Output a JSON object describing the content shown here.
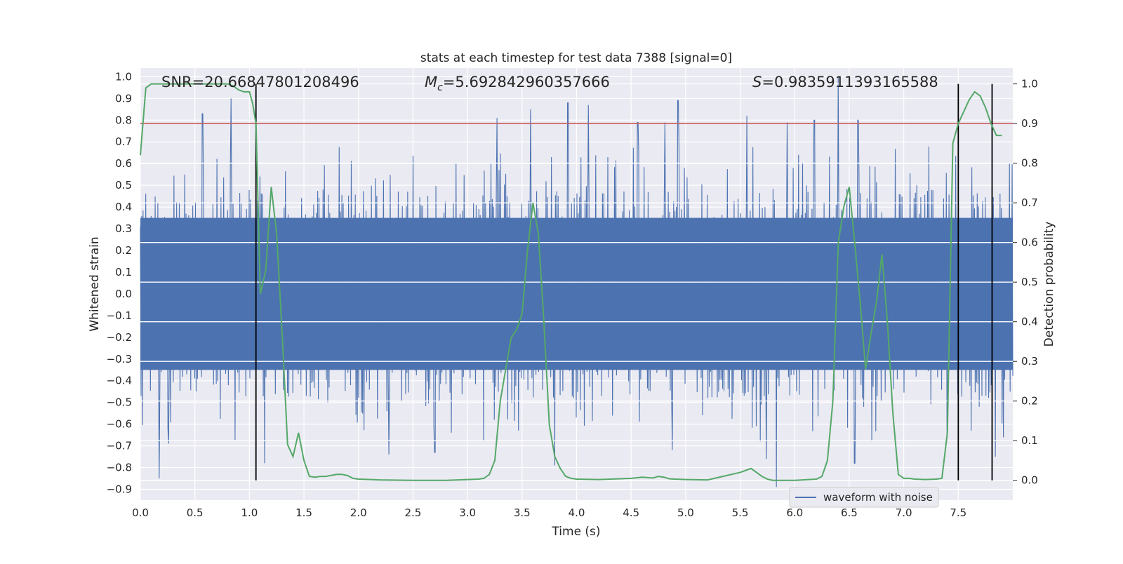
{
  "chart_data": {
    "type": "line",
    "title": "stats at each timestep for test data 7388 [signal=0]",
    "xlabel": "Time (s)",
    "ylabel": "Whitened strain",
    "ylabel_right": "Detection probability",
    "xlim": [
      0.0,
      8.0
    ],
    "ylim": [
      -0.95,
      1.04
    ],
    "ylim_right": [
      -0.05,
      1.04
    ],
    "x_ticks": [
      0.0,
      0.5,
      1.0,
      1.5,
      2.0,
      2.5,
      3.0,
      3.5,
      4.0,
      4.5,
      5.0,
      5.5,
      6.0,
      6.5,
      7.0,
      7.5
    ],
    "x_tick_labels": [
      "0.0",
      "0.5",
      "1.0",
      "1.5",
      "2.0",
      "2.5",
      "3.0",
      "3.5",
      "4.0",
      "4.5",
      "5.0",
      "5.5",
      "6.0",
      "6.5",
      "7.0",
      "7.5"
    ],
    "y_ticks": [
      1.0,
      0.9,
      0.8,
      0.7,
      0.6,
      0.5,
      0.4,
      0.3,
      0.2,
      0.1,
      0.0,
      -0.1,
      -0.2,
      -0.3,
      -0.4,
      -0.5,
      -0.6,
      -0.7,
      -0.8,
      -0.9
    ],
    "y_tick_labels": [
      "1.0",
      "0.9",
      "0.8",
      "0.7",
      "0.6",
      "0.5",
      "0.4",
      "0.3",
      "0.2",
      "0.1",
      "0.0",
      "−0.1",
      "−0.2",
      "−0.3",
      "−0.4",
      "−0.5",
      "−0.6",
      "−0.7",
      "−0.8",
      "−0.9"
    ],
    "y2_ticks": [
      1.0,
      0.9,
      0.8,
      0.7,
      0.6,
      0.5,
      0.4,
      0.3,
      0.2,
      0.1,
      0.0
    ],
    "y2_tick_labels": [
      "1.0",
      "0.9",
      "0.8",
      "0.7",
      "0.6",
      "0.5",
      "0.4",
      "0.3",
      "0.2",
      "0.1",
      "0.0"
    ],
    "grid": true,
    "legend": {
      "location": "lower-right",
      "entries": [
        "waveform with noise"
      ]
    },
    "annotations": {
      "snr": "SNR=20.66847801208496",
      "mc_symbol": "M",
      "mc_subscript": "c",
      "mc_value": "=5.692842960357666",
      "s_symbol": "S",
      "s_value": "=0.9835911393165588"
    },
    "threshold_right": 0.9,
    "vertical_lines_x": [
      1.06,
      7.5,
      7.81
    ],
    "waveform": {
      "name": "waveform with noise",
      "color": "#4c72b0",
      "x_range": [
        0.0,
        8.0
      ],
      "typical_upper": 0.35,
      "typical_lower": -0.35,
      "peaks_up": [
        [
          0.57,
          0.83
        ],
        [
          0.83,
          0.9
        ],
        [
          3.27,
          0.81
        ],
        [
          3.58,
          0.85
        ],
        [
          3.92,
          0.88
        ],
        [
          4.11,
          0.87
        ],
        [
          4.56,
          0.79
        ],
        [
          4.81,
          0.79
        ],
        [
          4.93,
          0.89
        ],
        [
          5.56,
          0.82
        ],
        [
          5.93,
          0.79
        ],
        [
          6.18,
          0.8
        ],
        [
          6.4,
          1.0
        ],
        [
          6.58,
          0.8
        ]
      ],
      "peaks_down": [
        [
          0.17,
          -0.85
        ],
        [
          0.26,
          -0.69
        ],
        [
          1.14,
          -0.78
        ],
        [
          2.28,
          -0.74
        ],
        [
          2.7,
          -0.73
        ],
        [
          3.8,
          -0.79
        ],
        [
          4.88,
          -0.72
        ],
        [
          5.74,
          -0.76
        ],
        [
          5.83,
          -0.89
        ],
        [
          6.55,
          -0.78
        ],
        [
          7.84,
          -0.75
        ]
      ]
    },
    "probability": {
      "color": "#55a868",
      "x": [
        0.0,
        0.05,
        0.1,
        0.15,
        0.2,
        0.3,
        0.4,
        0.5,
        0.6,
        0.7,
        0.8,
        0.85,
        0.9,
        0.95,
        1.0,
        1.03,
        1.06,
        1.1,
        1.15,
        1.2,
        1.25,
        1.3,
        1.35,
        1.4,
        1.45,
        1.5,
        1.55,
        1.6,
        1.65,
        1.7,
        1.8,
        1.85,
        1.9,
        1.95,
        2.0,
        2.2,
        2.5,
        2.8,
        3.0,
        3.1,
        3.15,
        3.2,
        3.25,
        3.3,
        3.35,
        3.4,
        3.45,
        3.5,
        3.55,
        3.6,
        3.65,
        3.7,
        3.75,
        3.8,
        3.85,
        3.9,
        3.95,
        4.0,
        4.2,
        4.4,
        4.5,
        4.6,
        4.7,
        4.75,
        4.8,
        4.85,
        4.9,
        5.0,
        5.2,
        5.5,
        5.6,
        5.65,
        5.7,
        5.75,
        5.8,
        5.9,
        6.0,
        6.2,
        6.25,
        6.3,
        6.35,
        6.4,
        6.45,
        6.5,
        6.55,
        6.6,
        6.65,
        6.7,
        6.75,
        6.8,
        6.85,
        6.9,
        6.95,
        7.0,
        7.05,
        7.1,
        7.2,
        7.3,
        7.35,
        7.4,
        7.45,
        7.5,
        7.55,
        7.6,
        7.65,
        7.7,
        7.75,
        7.8,
        7.85,
        7.9
      ],
      "y": [
        0.82,
        0.99,
        1.0,
        1.0,
        1.0,
        1.0,
        1.0,
        1.0,
        1.0,
        1.0,
        1.0,
        0.995,
        0.985,
        0.98,
        0.98,
        0.95,
        0.9,
        0.47,
        0.53,
        0.74,
        0.62,
        0.37,
        0.09,
        0.06,
        0.12,
        0.05,
        0.01,
        0.008,
        0.01,
        0.01,
        0.015,
        0.015,
        0.012,
        0.005,
        0.003,
        0.001,
        0.0,
        0.0,
        0.002,
        0.003,
        0.005,
        0.015,
        0.05,
        0.2,
        0.28,
        0.36,
        0.38,
        0.42,
        0.58,
        0.7,
        0.62,
        0.4,
        0.14,
        0.06,
        0.03,
        0.01,
        0.005,
        0.003,
        0.002,
        0.004,
        0.005,
        0.008,
        0.006,
        0.01,
        0.008,
        0.004,
        0.003,
        0.002,
        0.001,
        0.02,
        0.03,
        0.02,
        0.01,
        0.003,
        0.0,
        0.0,
        0.0,
        0.003,
        0.01,
        0.05,
        0.2,
        0.6,
        0.69,
        0.74,
        0.6,
        0.45,
        0.28,
        0.37,
        0.45,
        0.57,
        0.4,
        0.17,
        0.015,
        0.005,
        0.005,
        0.003,
        0.002,
        0.003,
        0.005,
        0.12,
        0.85,
        0.9,
        0.93,
        0.96,
        0.98,
        0.97,
        0.94,
        0.9,
        0.87,
        0.87
      ]
    }
  }
}
